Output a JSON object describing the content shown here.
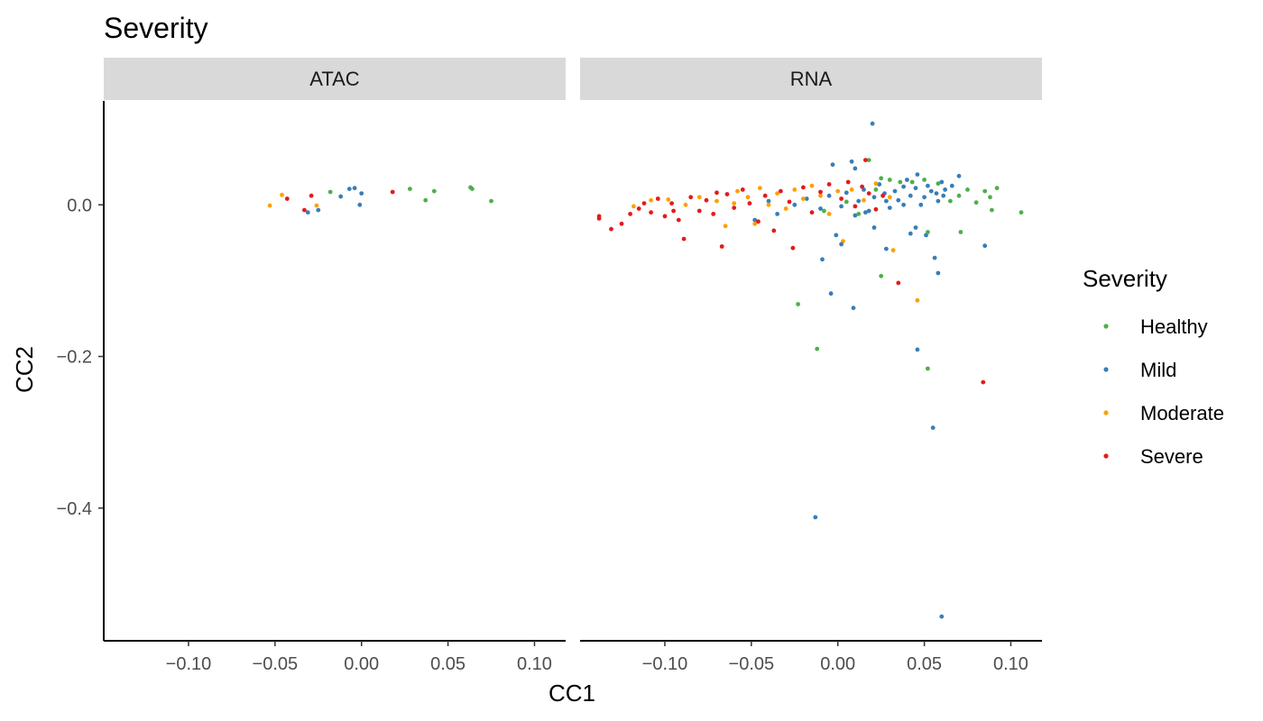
{
  "chart_data": {
    "type": "scatter",
    "title": "Severity",
    "xlabel": "CC1",
    "ylabel": "CC2",
    "xlim": [
      -0.149,
      0.118
    ],
    "ylim": [
      -0.575,
      0.137
    ],
    "xticks": [
      -0.1,
      -0.05,
      0.0,
      0.05,
      0.1
    ],
    "xtick_labels": [
      "−0.10",
      "−0.05",
      "0.00",
      "0.05",
      "0.10"
    ],
    "yticks": [
      0.0,
      -0.2,
      -0.4
    ],
    "ytick_labels": [
      "0.0",
      "−0.2",
      "−0.4"
    ],
    "grid": false,
    "legend": {
      "title": "Severity",
      "position": "right",
      "items": [
        {
          "label": "Healthy",
          "color": "#4daf4a"
        },
        {
          "label": "Mild",
          "color": "#377eb8"
        },
        {
          "label": "Moderate",
          "color": "#ff9f00"
        },
        {
          "label": "Severe",
          "color": "#e41a1c"
        }
      ]
    },
    "panels": [
      {
        "name": "ATAC",
        "points": [
          {
            "series": "Moderate",
            "x": -0.053,
            "y": -0.001
          },
          {
            "series": "Moderate",
            "x": -0.046,
            "y": 0.013
          },
          {
            "series": "Severe",
            "x": -0.043,
            "y": 0.008
          },
          {
            "series": "Severe",
            "x": -0.033,
            "y": -0.007
          },
          {
            "series": "Mild",
            "x": -0.031,
            "y": -0.01
          },
          {
            "series": "Severe",
            "x": -0.029,
            "y": 0.012
          },
          {
            "series": "Moderate",
            "x": -0.026,
            "y": -0.001
          },
          {
            "series": "Mild",
            "x": -0.025,
            "y": -0.007
          },
          {
            "series": "Healthy",
            "x": -0.018,
            "y": 0.017
          },
          {
            "series": "Mild",
            "x": -0.012,
            "y": 0.011
          },
          {
            "series": "Mild",
            "x": -0.007,
            "y": 0.021
          },
          {
            "series": "Mild",
            "x": -0.004,
            "y": 0.022
          },
          {
            "series": "Mild",
            "x": -0.001,
            "y": 0.0
          },
          {
            "series": "Mild",
            "x": 0.0,
            "y": 0.015
          },
          {
            "series": "Severe",
            "x": 0.018,
            "y": 0.017
          },
          {
            "series": "Healthy",
            "x": 0.028,
            "y": 0.021
          },
          {
            "series": "Healthy",
            "x": 0.037,
            "y": 0.006
          },
          {
            "series": "Healthy",
            "x": 0.042,
            "y": 0.018
          },
          {
            "series": "Healthy",
            "x": 0.063,
            "y": 0.023
          },
          {
            "series": "Healthy",
            "x": 0.064,
            "y": 0.021
          },
          {
            "series": "Healthy",
            "x": 0.075,
            "y": 0.005
          }
        ]
      },
      {
        "name": "RNA",
        "points": [
          {
            "series": "Mild",
            "x": 0.02,
            "y": 0.107
          },
          {
            "series": "Healthy",
            "x": 0.018,
            "y": 0.059
          },
          {
            "series": "Severe",
            "x": 0.016,
            "y": 0.059
          },
          {
            "series": "Mild",
            "x": 0.008,
            "y": 0.057
          },
          {
            "series": "Mild",
            "x": -0.003,
            "y": 0.053
          },
          {
            "series": "Mild",
            "x": 0.01,
            "y": 0.048
          },
          {
            "series": "Healthy",
            "x": 0.025,
            "y": 0.035
          },
          {
            "series": "Healthy",
            "x": 0.03,
            "y": 0.033
          },
          {
            "series": "Mild",
            "x": 0.04,
            "y": 0.033
          },
          {
            "series": "Mild",
            "x": 0.046,
            "y": 0.04
          },
          {
            "series": "Mild",
            "x": 0.06,
            "y": 0.03
          },
          {
            "series": "Mild",
            "x": 0.07,
            "y": 0.038
          },
          {
            "series": "Healthy",
            "x": 0.085,
            "y": 0.018
          },
          {
            "series": "Healthy",
            "x": 0.092,
            "y": 0.022
          },
          {
            "series": "Healthy",
            "x": 0.088,
            "y": 0.01
          },
          {
            "series": "Healthy",
            "x": 0.08,
            "y": 0.003
          },
          {
            "series": "Healthy",
            "x": 0.089,
            "y": -0.007
          },
          {
            "series": "Healthy",
            "x": 0.106,
            "y": -0.01
          },
          {
            "series": "Healthy",
            "x": 0.075,
            "y": 0.02
          },
          {
            "series": "Healthy",
            "x": 0.07,
            "y": 0.012
          },
          {
            "series": "Healthy",
            "x": 0.065,
            "y": 0.005
          },
          {
            "series": "Mild",
            "x": 0.062,
            "y": 0.02
          },
          {
            "series": "Mild",
            "x": 0.057,
            "y": 0.015
          },
          {
            "series": "Mild",
            "x": 0.052,
            "y": 0.025
          },
          {
            "series": "Mild",
            "x": 0.05,
            "y": 0.01
          },
          {
            "series": "Mild",
            "x": 0.048,
            "y": 0.0
          },
          {
            "series": "Mild",
            "x": 0.045,
            "y": 0.022
          },
          {
            "series": "Mild",
            "x": 0.042,
            "y": 0.012
          },
          {
            "series": "Mild",
            "x": 0.038,
            "y": 0.024
          },
          {
            "series": "Mild",
            "x": 0.035,
            "y": 0.006
          },
          {
            "series": "Mild",
            "x": 0.033,
            "y": 0.018
          },
          {
            "series": "Mild",
            "x": 0.03,
            "y": -0.004
          },
          {
            "series": "Mild",
            "x": 0.027,
            "y": 0.015
          },
          {
            "series": "Mild",
            "x": 0.024,
            "y": 0.027
          },
          {
            "series": "Mild",
            "x": 0.021,
            "y": 0.01
          },
          {
            "series": "Mild",
            "x": 0.018,
            "y": -0.008
          },
          {
            "series": "Mild",
            "x": 0.015,
            "y": 0.02
          },
          {
            "series": "Mild",
            "x": 0.012,
            "y": 0.005
          },
          {
            "series": "Mild",
            "x": 0.01,
            "y": -0.014
          },
          {
            "series": "Mild",
            "x": 0.005,
            "y": 0.016
          },
          {
            "series": "Mild",
            "x": 0.002,
            "y": -0.002
          },
          {
            "series": "Mild",
            "x": -0.005,
            "y": 0.012
          },
          {
            "series": "Mild",
            "x": -0.01,
            "y": -0.005
          },
          {
            "series": "Mild",
            "x": -0.018,
            "y": 0.008
          },
          {
            "series": "Mild",
            "x": -0.025,
            "y": 0.0
          },
          {
            "series": "Mild",
            "x": -0.035,
            "y": -0.012
          },
          {
            "series": "Mild",
            "x": -0.04,
            "y": 0.005
          },
          {
            "series": "Mild",
            "x": -0.048,
            "y": -0.02
          },
          {
            "series": "Mild",
            "x": 0.058,
            "y": 0.005
          },
          {
            "series": "Mild",
            "x": 0.066,
            "y": 0.025
          },
          {
            "series": "Healthy",
            "x": 0.058,
            "y": 0.028
          },
          {
            "series": "Healthy",
            "x": 0.05,
            "y": 0.033
          },
          {
            "series": "Healthy",
            "x": 0.043,
            "y": 0.03
          },
          {
            "series": "Healthy",
            "x": 0.036,
            "y": 0.03
          },
          {
            "series": "Healthy",
            "x": 0.022,
            "y": 0.02
          },
          {
            "series": "Healthy",
            "x": 0.012,
            "y": -0.012
          },
          {
            "series": "Healthy",
            "x": 0.005,
            "y": 0.004
          },
          {
            "series": "Healthy",
            "x": -0.008,
            "y": -0.008
          },
          {
            "series": "Moderate",
            "x": -0.118,
            "y": -0.002
          },
          {
            "series": "Moderate",
            "x": -0.108,
            "y": 0.006
          },
          {
            "series": "Moderate",
            "x": -0.098,
            "y": 0.007
          },
          {
            "series": "Moderate",
            "x": -0.088,
            "y": 0.0
          },
          {
            "series": "Moderate",
            "x": -0.08,
            "y": 0.01
          },
          {
            "series": "Moderate",
            "x": -0.07,
            "y": 0.005
          },
          {
            "series": "Moderate",
            "x": -0.065,
            "y": -0.028
          },
          {
            "series": "Moderate",
            "x": -0.058,
            "y": 0.018
          },
          {
            "series": "Moderate",
            "x": -0.052,
            "y": 0.01
          },
          {
            "series": "Moderate",
            "x": -0.045,
            "y": 0.022
          },
          {
            "series": "Moderate",
            "x": -0.04,
            "y": 0.0
          },
          {
            "series": "Moderate",
            "x": -0.035,
            "y": 0.015
          },
          {
            "series": "Moderate",
            "x": -0.03,
            "y": -0.005
          },
          {
            "series": "Moderate",
            "x": -0.025,
            "y": 0.02
          },
          {
            "series": "Moderate",
            "x": -0.02,
            "y": 0.008
          },
          {
            "series": "Moderate",
            "x": -0.015,
            "y": 0.025
          },
          {
            "series": "Moderate",
            "x": -0.01,
            "y": 0.012
          },
          {
            "series": "Moderate",
            "x": -0.005,
            "y": -0.012
          },
          {
            "series": "Moderate",
            "x": 0.0,
            "y": 0.018
          },
          {
            "series": "Moderate",
            "x": 0.003,
            "y": -0.048
          },
          {
            "series": "Moderate",
            "x": 0.008,
            "y": 0.02
          },
          {
            "series": "Moderate",
            "x": 0.015,
            "y": 0.006
          },
          {
            "series": "Moderate",
            "x": 0.022,
            "y": 0.028
          },
          {
            "series": "Moderate",
            "x": 0.03,
            "y": 0.01
          },
          {
            "series": "Moderate",
            "x": 0.032,
            "y": -0.06
          },
          {
            "series": "Moderate",
            "x": 0.046,
            "y": -0.126
          },
          {
            "series": "Moderate",
            "x": -0.048,
            "y": -0.025
          },
          {
            "series": "Moderate",
            "x": -0.06,
            "y": 0.002
          },
          {
            "series": "Severe",
            "x": -0.138,
            "y": -0.015
          },
          {
            "series": "Severe",
            "x": -0.138,
            "y": -0.018
          },
          {
            "series": "Severe",
            "x": -0.131,
            "y": -0.032
          },
          {
            "series": "Severe",
            "x": -0.125,
            "y": -0.025
          },
          {
            "series": "Severe",
            "x": -0.12,
            "y": -0.012
          },
          {
            "series": "Severe",
            "x": -0.115,
            "y": -0.005
          },
          {
            "series": "Severe",
            "x": -0.112,
            "y": 0.002
          },
          {
            "series": "Severe",
            "x": -0.108,
            "y": -0.01
          },
          {
            "series": "Severe",
            "x": -0.104,
            "y": 0.008
          },
          {
            "series": "Severe",
            "x": -0.1,
            "y": -0.015
          },
          {
            "series": "Severe",
            "x": -0.096,
            "y": 0.002
          },
          {
            "series": "Severe",
            "x": -0.092,
            "y": -0.02
          },
          {
            "series": "Severe",
            "x": -0.089,
            "y": -0.045
          },
          {
            "series": "Severe",
            "x": -0.085,
            "y": 0.01
          },
          {
            "series": "Severe",
            "x": -0.08,
            "y": -0.008
          },
          {
            "series": "Severe",
            "x": -0.076,
            "y": 0.006
          },
          {
            "series": "Severe",
            "x": -0.072,
            "y": -0.012
          },
          {
            "series": "Severe",
            "x": -0.067,
            "y": -0.055
          },
          {
            "series": "Severe",
            "x": -0.064,
            "y": 0.014
          },
          {
            "series": "Severe",
            "x": -0.06,
            "y": -0.004
          },
          {
            "series": "Severe",
            "x": -0.055,
            "y": 0.02
          },
          {
            "series": "Severe",
            "x": -0.051,
            "y": 0.002
          },
          {
            "series": "Severe",
            "x": -0.046,
            "y": -0.022
          },
          {
            "series": "Severe",
            "x": -0.042,
            "y": 0.012
          },
          {
            "series": "Severe",
            "x": -0.037,
            "y": -0.034
          },
          {
            "series": "Severe",
            "x": -0.033,
            "y": 0.018
          },
          {
            "series": "Severe",
            "x": -0.028,
            "y": 0.004
          },
          {
            "series": "Severe",
            "x": -0.026,
            "y": -0.057
          },
          {
            "series": "Severe",
            "x": -0.02,
            "y": 0.023
          },
          {
            "series": "Severe",
            "x": -0.015,
            "y": -0.01
          },
          {
            "series": "Severe",
            "x": -0.01,
            "y": 0.017
          },
          {
            "series": "Severe",
            "x": -0.005,
            "y": 0.027
          },
          {
            "series": "Severe",
            "x": 0.002,
            "y": 0.008
          },
          {
            "series": "Severe",
            "x": 0.006,
            "y": 0.03
          },
          {
            "series": "Severe",
            "x": 0.01,
            "y": -0.002
          },
          {
            "series": "Severe",
            "x": 0.014,
            "y": 0.024
          },
          {
            "series": "Severe",
            "x": 0.018,
            "y": 0.015
          },
          {
            "series": "Severe",
            "x": 0.022,
            "y": -0.006
          },
          {
            "series": "Severe",
            "x": 0.026,
            "y": 0.012
          },
          {
            "series": "Severe",
            "x": 0.035,
            "y": -0.103
          },
          {
            "series": "Severe",
            "x": 0.084,
            "y": -0.234
          },
          {
            "series": "Severe",
            "x": -0.095,
            "y": -0.008
          },
          {
            "series": "Severe",
            "x": -0.07,
            "y": 0.016
          },
          {
            "series": "Mild",
            "x": 0.042,
            "y": -0.038
          },
          {
            "series": "Mild",
            "x": 0.045,
            "y": -0.03
          },
          {
            "series": "Mild",
            "x": 0.051,
            "y": -0.04
          },
          {
            "series": "Mild",
            "x": 0.056,
            "y": -0.07
          },
          {
            "series": "Mild",
            "x": 0.058,
            "y": -0.09
          },
          {
            "series": "Mild",
            "x": 0.085,
            "y": -0.054
          },
          {
            "series": "Mild",
            "x": 0.028,
            "y": -0.058
          },
          {
            "series": "Mild",
            "x": 0.021,
            "y": -0.03
          },
          {
            "series": "Mild",
            "x": 0.002,
            "y": -0.052
          },
          {
            "series": "Mild",
            "x": -0.001,
            "y": -0.04
          },
          {
            "series": "Mild",
            "x": -0.009,
            "y": -0.072
          },
          {
            "series": "Mild",
            "x": -0.004,
            "y": -0.117
          },
          {
            "series": "Mild",
            "x": 0.009,
            "y": -0.136
          },
          {
            "series": "Mild",
            "x": 0.046,
            "y": -0.191
          },
          {
            "series": "Mild",
            "x": 0.055,
            "y": -0.294
          },
          {
            "series": "Mild",
            "x": -0.013,
            "y": -0.412
          },
          {
            "series": "Mild",
            "x": 0.06,
            "y": -0.543
          },
          {
            "series": "Healthy",
            "x": -0.023,
            "y": -0.131
          },
          {
            "series": "Healthy",
            "x": -0.012,
            "y": -0.19
          },
          {
            "series": "Healthy",
            "x": 0.025,
            "y": -0.094
          },
          {
            "series": "Healthy",
            "x": 0.052,
            "y": -0.216
          },
          {
            "series": "Healthy",
            "x": 0.071,
            "y": -0.036
          },
          {
            "series": "Healthy",
            "x": 0.052,
            "y": -0.036
          },
          {
            "series": "Mild",
            "x": 0.038,
            "y": 0.0
          },
          {
            "series": "Mild",
            "x": 0.054,
            "y": 0.018
          },
          {
            "series": "Mild",
            "x": 0.061,
            "y": 0.012
          },
          {
            "series": "Mild",
            "x": 0.028,
            "y": 0.005
          },
          {
            "series": "Mild",
            "x": 0.016,
            "y": -0.01
          }
        ]
      }
    ]
  }
}
